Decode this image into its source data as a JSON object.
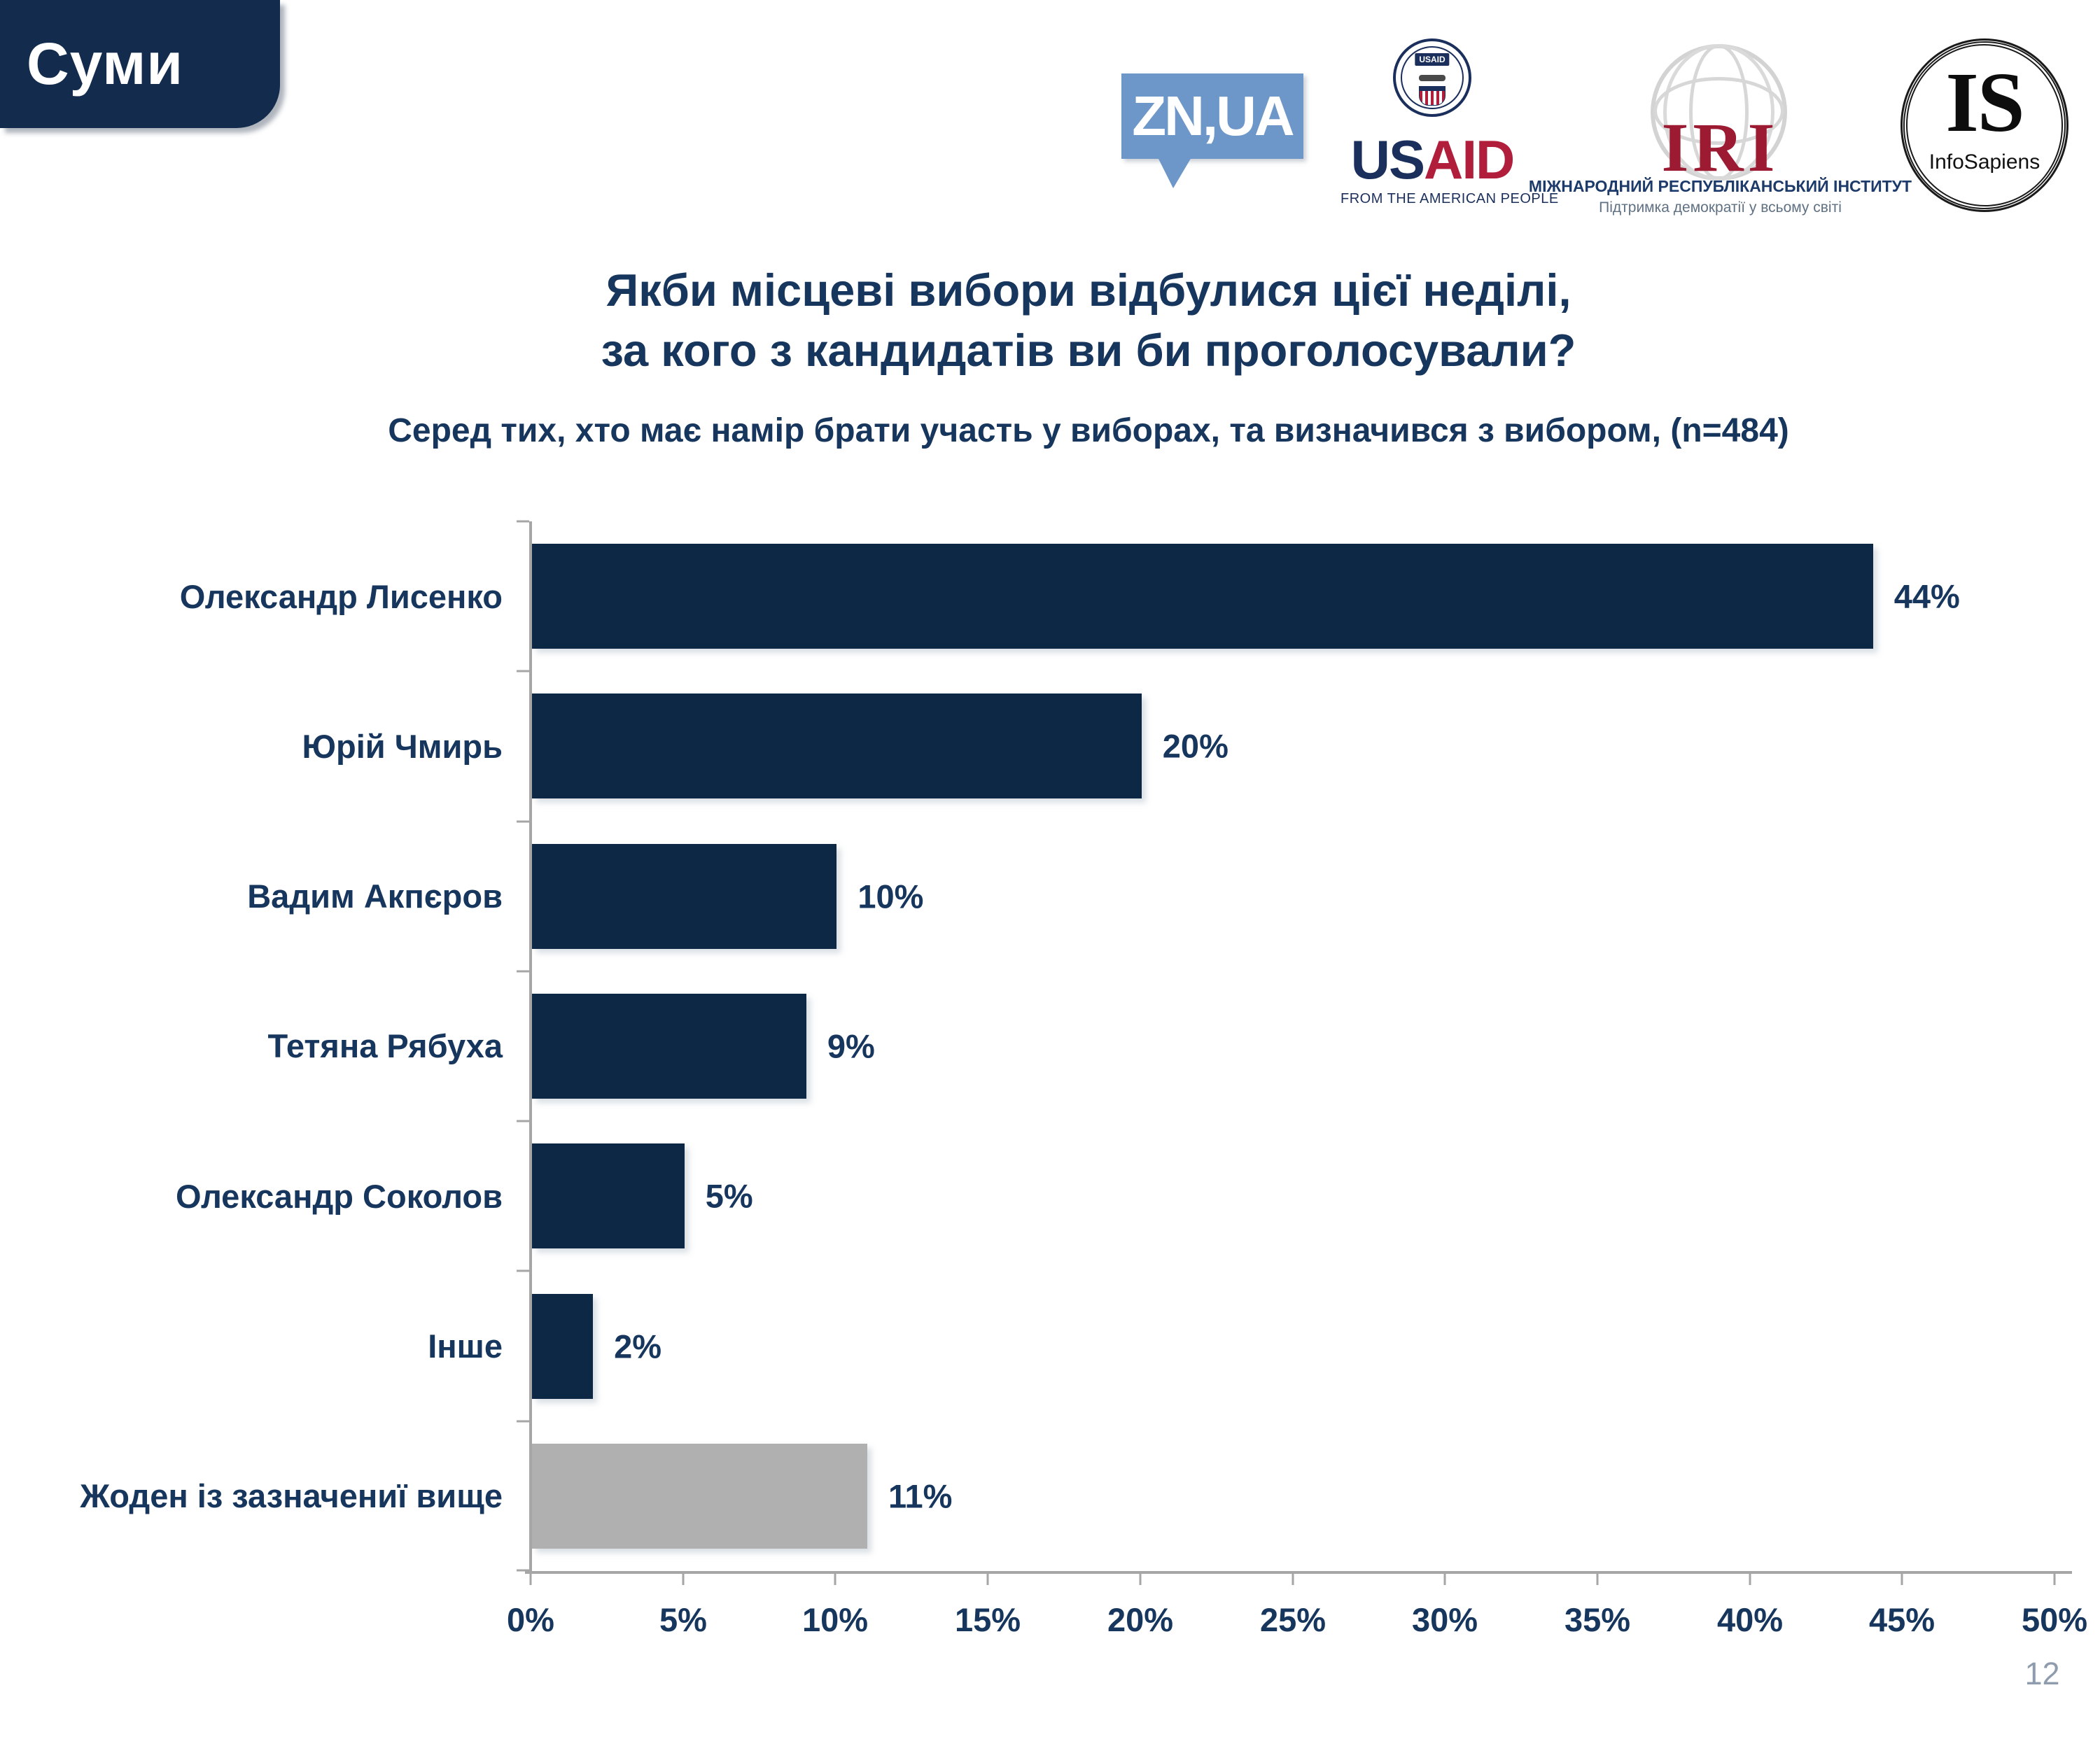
{
  "page": {
    "number": "12"
  },
  "region_tag": "Суми",
  "logos": {
    "znua": {
      "text": "ZN,UA"
    },
    "usaid": {
      "seal_label": "USAID",
      "wordmark_us": "US",
      "wordmark_aid": "AID",
      "tagline": "FROM THE AMERICAN PEOPLE"
    },
    "iri": {
      "acronym": "IRI",
      "line1": "МІЖНАРОДНИЙ РЕСПУБЛІКАНСЬКИЙ ІНСТИТУТ",
      "line2": "Підтримка демократії у всьому світі"
    },
    "infosapiens": {
      "acronym": "IS",
      "name": "InfoSapiens"
    }
  },
  "title": {
    "line1": "Якби місцеві вибори відбулися цієї неділі,",
    "line2": "за кого з кандидатів ви би проголосували?"
  },
  "subtitle": "Серед тих, хто має намір брати участь у виборах, та визначився з вибором, (n=484)",
  "chart_data": {
    "type": "bar",
    "orientation": "horizontal",
    "categories": [
      "Олександр Лисенко",
      "Юрій Чмирь",
      "Вадим Акпєров",
      "Тетяна Рябуха",
      "Олександр Соколов",
      "Інше",
      "Жоден із зазначениї вище"
    ],
    "values": [
      44,
      20,
      10,
      9,
      5,
      2,
      11
    ],
    "labels": [
      "44%",
      "20%",
      "10%",
      "9%",
      "5%",
      "2%",
      "11%"
    ],
    "bar_colors": [
      "#0d2845",
      "#0d2845",
      "#0d2845",
      "#0d2845",
      "#0d2845",
      "#0d2845",
      "#b0b0b0"
    ],
    "xlim": [
      0,
      50
    ],
    "x_ticks": [
      "0%",
      "5%",
      "10%",
      "15%",
      "20%",
      "25%",
      "30%",
      "35%",
      "40%",
      "45%",
      "50%"
    ],
    "grid": false,
    "legend": false
  },
  "colors": {
    "navy_bar": "#0d2845",
    "gray_bar": "#b0b0b0",
    "text_navy": "#17365d",
    "axis_gray": "#a6a6a6",
    "znua_blue": "#6e97c9",
    "usaid_blue": "#1b2f5d",
    "usaid_red": "#b01e3c",
    "iri_red": "#9c1b33"
  }
}
